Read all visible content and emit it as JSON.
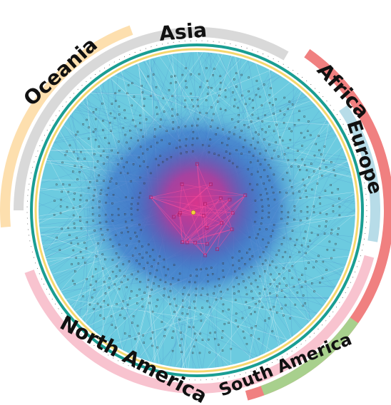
{
  "regions": [
    {
      "name": "Asia",
      "band_color": "#d9d9d9",
      "start_deg": -90,
      "end_deg": 30,
      "track": "inner"
    },
    {
      "name": "Oceania",
      "band_color": "#fddfae",
      "start_deg": -95,
      "end_deg": -20,
      "track": "outer"
    },
    {
      "name": "Africa",
      "band_color": "#f08080",
      "start_deg": 35,
      "end_deg": 165,
      "track": "outer"
    },
    {
      "name": "Europe",
      "band_color": "#b7dce8",
      "start_deg": 55,
      "end_deg": 100,
      "track": "inner"
    },
    {
      "name": "North America",
      "band_color": "#f8c3cf",
      "start_deg": 105,
      "end_deg": 250,
      "track": "inner"
    },
    {
      "name": "South America",
      "band_color": "#a8d08d",
      "start_deg": 125,
      "end_deg": 160,
      "track": "outer"
    }
  ],
  "labels": {
    "asia": "Asia",
    "oceania": "Oceania",
    "africa": "Africa",
    "europe": "Europe",
    "north_america": "North America",
    "south_america": "South America"
  },
  "colors": {
    "outer_fill": "#6ccbe0",
    "mid_blue": "#3e59b8",
    "core_magenta": "#e0338a",
    "edge_light": "#bfe8f3",
    "teal_ring": "#1a9e93",
    "yellow_ring": "#f5d76e",
    "purple_ring": "#7f7fc6",
    "blue_ring": "#6a8fc9",
    "node": "#333333",
    "hub": "#f4d03f"
  }
}
